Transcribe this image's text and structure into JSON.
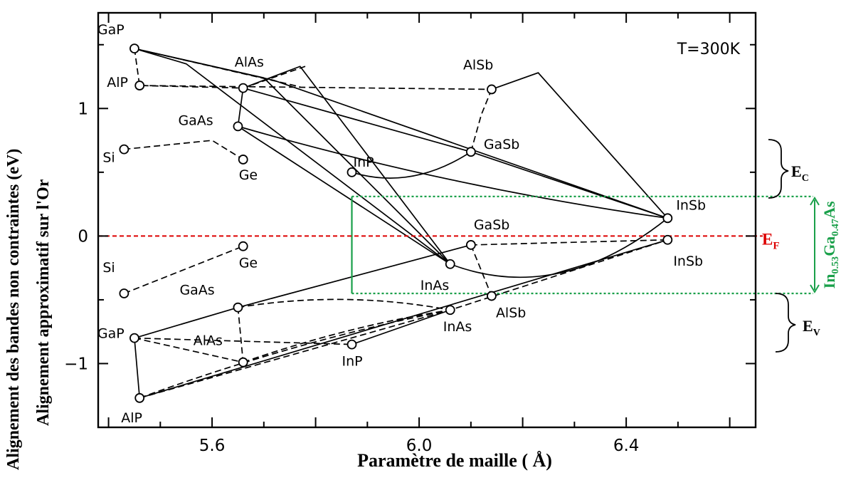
{
  "chart_data": {
    "type": "scatter",
    "title": "",
    "temperature_label": "T=300K",
    "xlabel": "Paramètre de maille ( Å)",
    "ylabel_line1": "Alignement des bandes non contraintes (eV)",
    "ylabel_line2": "Alignement approximatif sur l'Or",
    "xlim": [
      5.38,
      6.65
    ],
    "ylim": [
      -1.5,
      1.75
    ],
    "x_ticks": [
      5.6,
      6.0,
      6.4
    ],
    "x_tick_labels": [
      "5.6",
      "6.0",
      "6.4"
    ],
    "y_ticks": [
      -1,
      0,
      1
    ],
    "y_tick_labels": [
      "−1",
      "0",
      "1"
    ],
    "conduction_points": [
      {
        "label": "GaP",
        "x": 5.45,
        "y": 1.47
      },
      {
        "label": "AlP",
        "x": 5.46,
        "y": 1.18
      },
      {
        "label": "AlAs",
        "x": 5.66,
        "y": 1.16
      },
      {
        "label": "GaAs",
        "x": 5.65,
        "y": 0.86
      },
      {
        "label": "Si",
        "x": 5.43,
        "y": 0.68
      },
      {
        "label": "Ge",
        "x": 5.66,
        "y": 0.6
      },
      {
        "label": "InP",
        "x": 5.87,
        "y": 0.5
      },
      {
        "label": "GaSb",
        "x": 6.1,
        "y": 0.66
      },
      {
        "label": "AlSb",
        "x": 6.14,
        "y": 1.15
      },
      {
        "label": "InAs",
        "x": 6.06,
        "y": -0.22
      },
      {
        "label": "InSb",
        "x": 6.48,
        "y": 0.14
      }
    ],
    "valence_points": [
      {
        "label": "Si",
        "x": 5.43,
        "y": -0.45
      },
      {
        "label": "Ge",
        "x": 5.66,
        "y": -0.08
      },
      {
        "label": "GaSb",
        "x": 6.1,
        "y": -0.07
      },
      {
        "label": "GaAs",
        "x": 5.65,
        "y": -0.56
      },
      {
        "label": "AlSb",
        "x": 6.14,
        "y": -0.47
      },
      {
        "label": "InAs",
        "x": 6.06,
        "y": -0.58
      },
      {
        "label": "GaP",
        "x": 5.45,
        "y": -0.8
      },
      {
        "label": "AlAs",
        "x": 5.66,
        "y": -0.99
      },
      {
        "label": "InP",
        "x": 5.87,
        "y": -0.85
      },
      {
        "label": "AlP",
        "x": 5.46,
        "y": -1.27
      },
      {
        "label": "InSb",
        "x": 6.48,
        "y": -0.03
      }
    ],
    "fermi_level": {
      "label": "E",
      "sub": "F",
      "y": 0,
      "color": "#dd0000"
    },
    "ingaas_box": {
      "label": "In",
      "sub1": "0.53",
      "mid": "Ga",
      "sub2": "0.47",
      "tail": "As",
      "x_left": 5.87,
      "x_right": 6.65,
      "y_top": 0.31,
      "y_bottom": -0.45,
      "color": "#1aa04a"
    },
    "ec_label": {
      "text": "E",
      "sub": "C"
    },
    "ev_label": {
      "text": "E",
      "sub": "V"
    },
    "colors": {
      "curves": "#000000",
      "fermi": "#dd0000",
      "ingaas": "#1aa04a"
    }
  }
}
